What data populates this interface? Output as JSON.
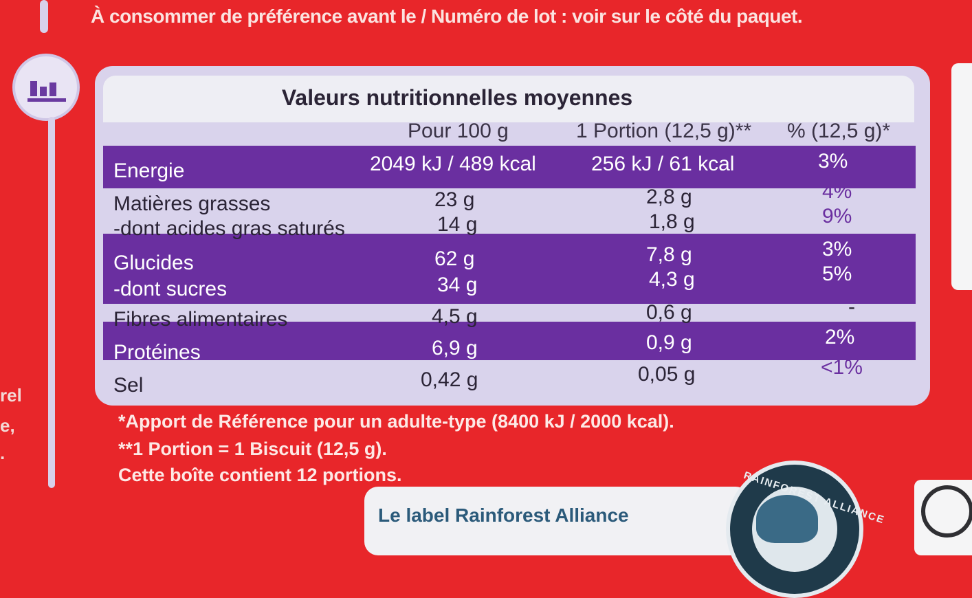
{
  "header": {
    "storage_text": "À consommer de préférence avant le / Numéro de lot : voir sur le côté du paquet."
  },
  "table": {
    "title": "Valeurs nutritionnelles moyennes",
    "columns": [
      "Pour 100 g",
      "1 Portion (12,5 g)**",
      "% (12,5 g)*"
    ],
    "rows": [
      {
        "label": "Energie",
        "per100": "2049 kJ / 489 kcal",
        "portion": "256 kJ / 61 kcal",
        "pct": "3%"
      },
      {
        "label": "Matières grasses",
        "per100": "23 g",
        "portion": "2,8 g",
        "pct": "4%"
      },
      {
        "label": "-dont acides gras saturés",
        "per100": "14 g",
        "portion": "1,8 g",
        "pct": "9%"
      },
      {
        "label": "Glucides",
        "per100": "62 g",
        "portion": "7,8 g",
        "pct": "3%"
      },
      {
        "label": "-dont sucres",
        "per100": "34 g",
        "portion": "4,3 g",
        "pct": "5%"
      },
      {
        "label": "Fibres alimentaires",
        "per100": "4,5 g",
        "portion": "0,6 g",
        "pct": "-"
      },
      {
        "label": "Protéines",
        "per100": "6,9 g",
        "portion": "0,9 g",
        "pct": "2%"
      },
      {
        "label": "Sel",
        "per100": "0,42 g",
        "portion": "0,05 g",
        "pct": "<1%"
      }
    ]
  },
  "footnotes": {
    "ref_intake": "*Apport de Référence pour un adulte-type (8400 kJ / 2000 kcal).",
    "portion_def": "**1 Portion = 1 Biscuit (12,5 g).",
    "box_contains": "Cette boîte contient 12 portions."
  },
  "rainforest": {
    "label_text": "Le label Rainforest Alliance",
    "seal_text": "RAINFOREST ALLIANCE"
  },
  "side_fragments": [
    "rel",
    "e,",
    "."
  ],
  "colors": {
    "package_red": "#e8262a",
    "table_purple": "#6a2fa0",
    "table_lavender": "#d9d3ec"
  }
}
